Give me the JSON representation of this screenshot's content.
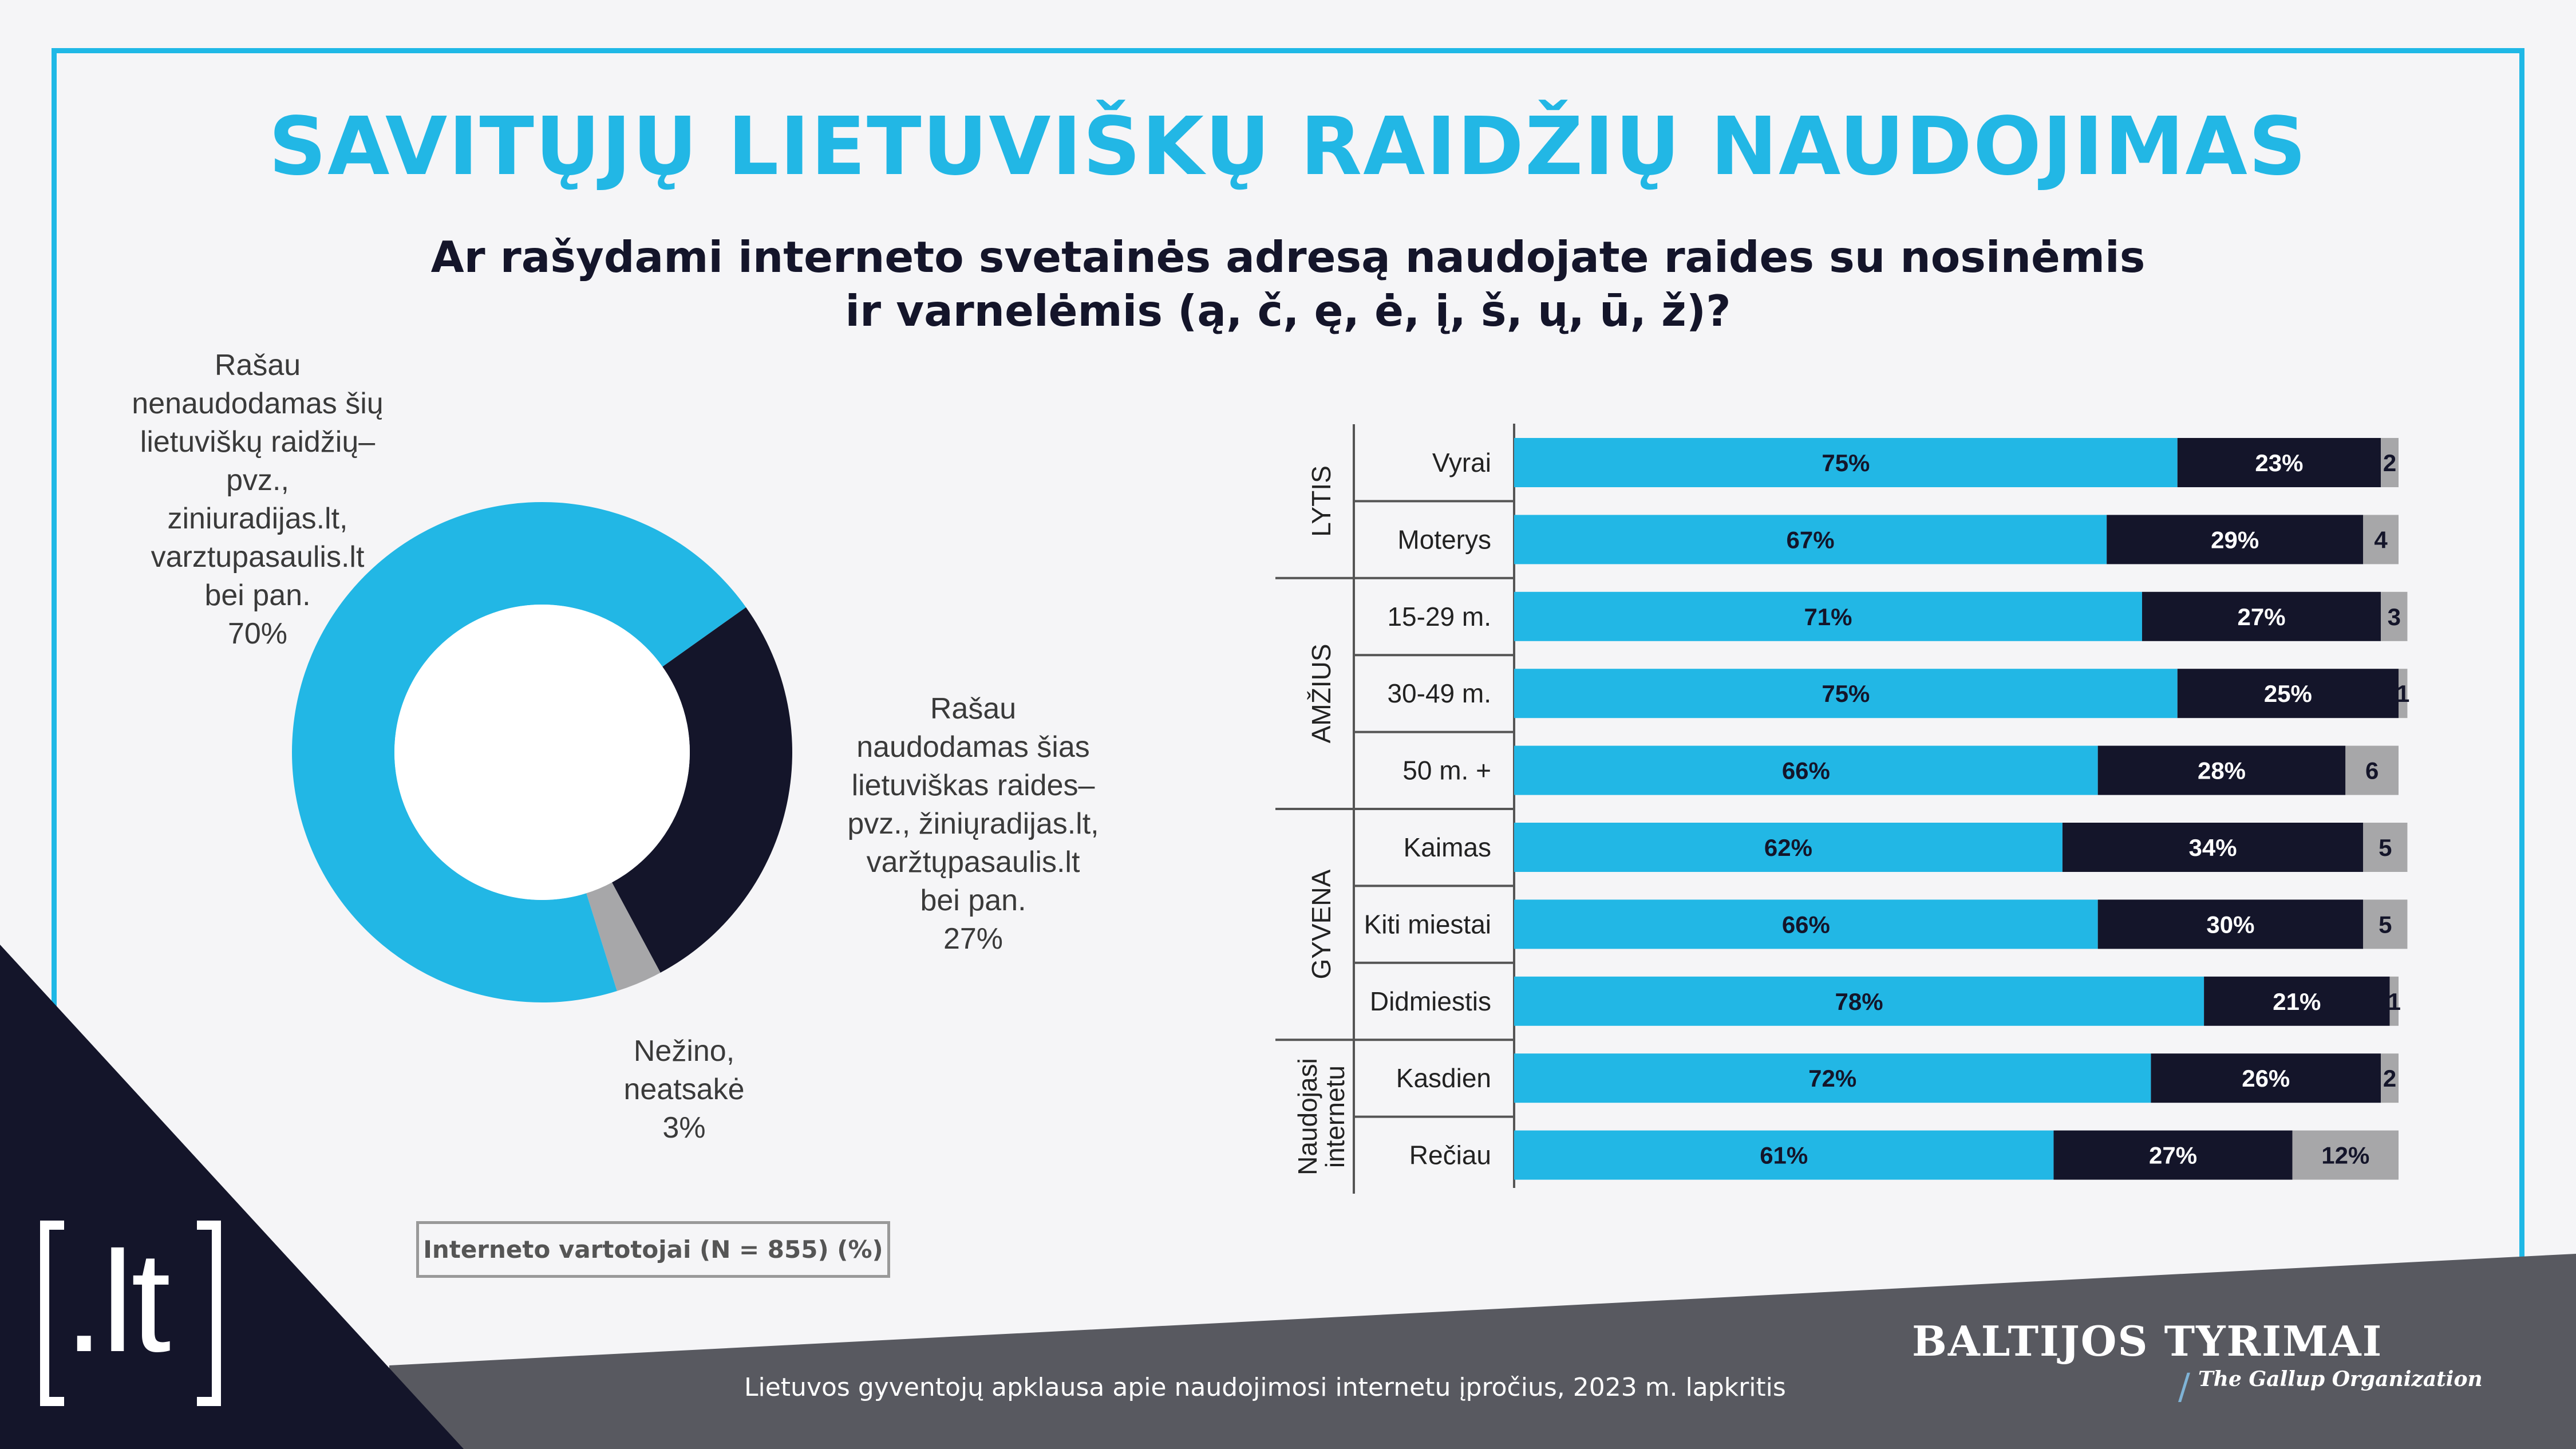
{
  "title": "SAVITŲJŲ LIETUVIŠKŲ RAIDŽIŲ NAUDOJIMAS",
  "question": [
    "Ar rašydami interneto svetainės adresą naudojate raides su nosinėmis",
    "ir varnelėmis (ą, č, ę, ė, į, š, ų, ū, ž)?"
  ],
  "colors": {
    "accent": "#22b7e5",
    "dark": "#14152a",
    "gray": "#a7a7a9"
  },
  "chart_data": [
    {
      "type": "pie",
      "variant": "donut",
      "slices": [
        {
          "label": "Rašau\nnenaudodamas šių\nlietuviškų raidžių–\npvz.,\nziniuradijas.lt,\nvarztupasaulis.lt\nbei pan.\n70%",
          "value": 70,
          "color": "#22b7e5"
        },
        {
          "label": "Rašau\nnaudodamas šias\nlietuviškas raides–\npvz., žiniųradijas.lt,\nvaržtųpasaulis.lt\nbei pan.\n27%",
          "value": 27,
          "color": "#14152a"
        },
        {
          "label": "Nežino,\nneatsakė\n3%",
          "value": 3,
          "color": "#a7a7a9"
        }
      ]
    },
    {
      "type": "bar",
      "orientation": "horizontal",
      "stacked": true,
      "groups": [
        {
          "name": "LYTIS",
          "categories": [
            "Vyrai",
            "Moterys"
          ]
        },
        {
          "name": "AMŽIUS",
          "categories": [
            "15-29 m.",
            "30-49 m.",
            "50 m. +"
          ]
        },
        {
          "name": "GYVENA",
          "categories": [
            "Kaimas",
            "Kiti miestai",
            "Didmiestis"
          ]
        },
        {
          "name": "Naudojasi\ninternetu",
          "categories": [
            "Kasdien",
            "Rečiau"
          ]
        }
      ],
      "categories": [
        "Vyrai",
        "Moterys",
        "15-29 m.",
        "30-49 m.",
        "50 m. +",
        "Kaimas",
        "Kiti miestai",
        "Didmiestis",
        "Kasdien",
        "Rečiau"
      ],
      "series": [
        {
          "color": "#22b7e5",
          "values": [
            75,
            67,
            71,
            75,
            66,
            62,
            66,
            78,
            72,
            61
          ],
          "labels": [
            "75%",
            "67%",
            "71%",
            "75%",
            "66%",
            "62%",
            "66%",
            "78%",
            "72%",
            "61%"
          ]
        },
        {
          "color": "#14152a",
          "values": [
            23,
            29,
            27,
            25,
            28,
            34,
            30,
            21,
            26,
            27
          ],
          "labels": [
            "23%",
            "29%",
            "27%",
            "25%",
            "28%",
            "34%",
            "30%",
            "21%",
            "26%",
            "27%"
          ]
        },
        {
          "color": "#a7a7a9",
          "values": [
            2,
            4,
            3,
            1,
            6,
            5,
            5,
            1,
            2,
            12
          ],
          "labels": [
            "2",
            "4",
            "3",
            "1",
            "6",
            "5",
            "5",
            "1",
            "2",
            "12%"
          ]
        }
      ]
    }
  ],
  "base_note": "Interneto vartotojai (N = 855) (%)",
  "footer": "Lietuvos gyventojų apklausa apie naudojimosi internetu įpročius, 2023 m. lapkritis",
  "brand": {
    "name": "BALTIJOS TYRIMAI",
    "sub": "The Gallup Organization",
    "slash": "/"
  },
  "logo": ".lt"
}
